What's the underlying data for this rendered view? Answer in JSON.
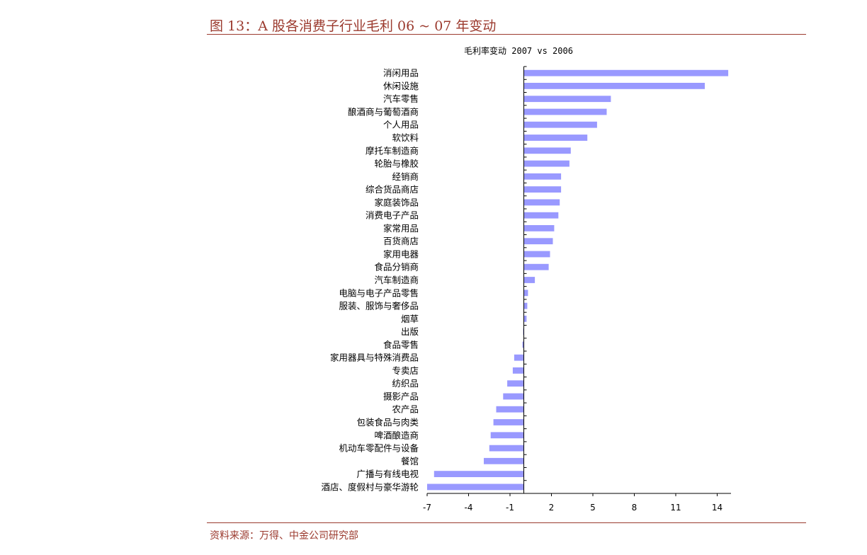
{
  "figure": {
    "title": "图 13：A 股各消费子行业毛利 06 ~ 07 年变动",
    "source": "资料来源：万得、中金公司研究部"
  },
  "colors": {
    "accent": "#9b3a2e",
    "bar": "#9999ff"
  },
  "chart_data": {
    "type": "bar",
    "orientation": "horizontal",
    "title": "毛利率变动 2007 vs 2006",
    "xlabel": "",
    "ylabel": "",
    "xlim": [
      -7,
      15
    ],
    "xticks": [
      -7,
      -4,
      -1,
      2,
      5,
      8,
      11,
      14
    ],
    "grid": false,
    "categories": [
      "消闲用品",
      "休闲设施",
      "汽车零售",
      "酿酒商与葡萄酒商",
      "个人用品",
      "软饮料",
      "摩托车制造商",
      "轮胎与橡胶",
      "经销商",
      "综合货品商店",
      "家庭装饰品",
      "消费电子产品",
      "家常用品",
      "百货商店",
      "家用电器",
      "食品分销商",
      "汽车制造商",
      "电脑与电子产品零售",
      "服装、服饰与奢侈品",
      "烟草",
      "出版",
      "食品零售",
      "家用器具与特殊消费品",
      "专卖店",
      "纺织品",
      "摄影产品",
      "农产品",
      "包装食品与肉类",
      "啤酒酿造商",
      "机动车零配件与设备",
      "餐馆",
      "广播与有线电视",
      "酒店、度假村与豪华游轮"
    ],
    "values": [
      14.8,
      13.1,
      6.3,
      6.0,
      5.3,
      4.6,
      3.4,
      3.3,
      2.7,
      2.7,
      2.6,
      2.5,
      2.2,
      2.1,
      1.9,
      1.8,
      0.8,
      0.3,
      0.25,
      0.2,
      -0.05,
      -0.1,
      -0.7,
      -0.8,
      -1.2,
      -1.5,
      -2.0,
      -2.2,
      -2.4,
      -2.5,
      -2.9,
      -6.5,
      -7.0
    ]
  }
}
